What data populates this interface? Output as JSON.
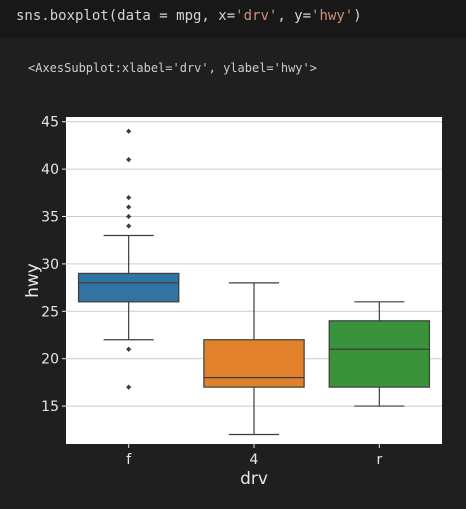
{
  "code_cell": {
    "prefix": "sns.boxplot(data = mpg, x=",
    "x_arg": "'drv'",
    "sep": ", y=",
    "y_arg": "'hwy'",
    "suffix": ")"
  },
  "output": {
    "repr": "<AxesSubplot:xlabel='drv', ylabel='hwy'>"
  },
  "colors": {
    "background": "#1f1f1f",
    "plot_bg": "#ffffff",
    "grid": "#cccccc",
    "string_token": "#ce9178"
  },
  "chart_data": {
    "type": "box",
    "xlabel": "drv",
    "ylabel": "hwy",
    "ylim": [
      11,
      45.5
    ],
    "yticks": [
      15,
      20,
      25,
      30,
      35,
      40,
      45
    ],
    "grid": "horizontal",
    "categories": [
      "f",
      "4",
      "r"
    ],
    "boxes": [
      {
        "category": "f",
        "color": "#3274a1",
        "whisker_low": 22,
        "q1": 26,
        "median": 28,
        "q3": 29,
        "whisker_high": 33,
        "outliers": [
          17,
          21,
          34,
          35,
          36,
          37,
          41,
          44
        ]
      },
      {
        "category": "4",
        "color": "#e1812c",
        "whisker_low": 12,
        "q1": 17,
        "median": 18,
        "q3": 22,
        "whisker_high": 28,
        "outliers": []
      },
      {
        "category": "r",
        "color": "#3a923a",
        "whisker_low": 15,
        "q1": 17,
        "median": 21,
        "q3": 24,
        "whisker_high": 26,
        "outliers": []
      }
    ]
  }
}
